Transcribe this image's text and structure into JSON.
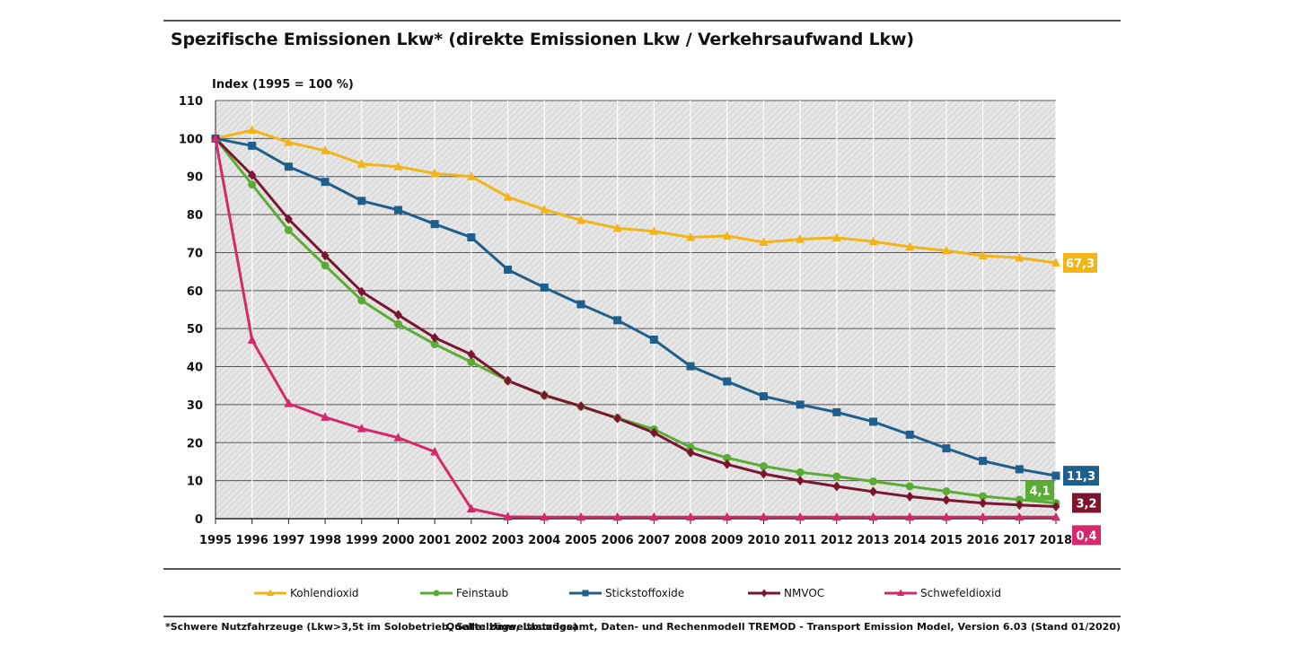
{
  "header": {
    "title": "Spezifische Emissionen Lkw* (direkte Emissionen Lkw / Verkehrsaufwand Lkw)"
  },
  "footer": {
    "note": "*Schwere Nutzfahrzeuge (Lkw>3,5t im Solobetrieb, Sattelzüge, Lastzüge)",
    "source": "Quelle: Umweltbundesamt, Daten- und Rechenmodell TREMOD - Transport Emission Model, Version 6.03 (Stand 01/2020)"
  },
  "chart_data": {
    "type": "line",
    "title": "Spezifische Emissionen Lkw* (direkte Emissionen Lkw / Verkehrsaufwand Lkw)",
    "ylabel": "Index (1995 = 100 %)",
    "xlabel": "",
    "ylim": [
      0,
      110
    ],
    "yticks": [
      0,
      10,
      20,
      30,
      40,
      50,
      60,
      70,
      80,
      90,
      100,
      110
    ],
    "categories": [
      "1995",
      "1996",
      "1997",
      "1998",
      "1999",
      "2000",
      "2001",
      "2002",
      "2003",
      "2004",
      "2005",
      "2006",
      "2007",
      "2008",
      "2009",
      "2010",
      "2011",
      "2012",
      "2013",
      "2014",
      "2015",
      "2016",
      "2017",
      "2018"
    ],
    "grid": true,
    "legend_position": "bottom",
    "series": [
      {
        "name": "Kohlendioxid",
        "color": "#f2b416",
        "marker": "triangle",
        "end_label": "67,3",
        "values": [
          100,
          102.2,
          99,
          96.8,
          93.3,
          92.6,
          90.8,
          90,
          84.6,
          81.3,
          78.5,
          76.4,
          75.6,
          74,
          74.4,
          72.7,
          73.5,
          73.9,
          72.9,
          71.5,
          70.5,
          69.2,
          68.6,
          67.3
        ]
      },
      {
        "name": "Feinstaub",
        "color": "#5aac35",
        "marker": "circle",
        "end_label": "4,1",
        "values": [
          100,
          87.9,
          75.9,
          66.6,
          57.4,
          51.2,
          45.9,
          41.2,
          36.3,
          32.4,
          29.5,
          26.5,
          23.5,
          18.8,
          16,
          13.8,
          12.2,
          11.1,
          9.8,
          8.5,
          7.2,
          5.9,
          5.0,
          4.1
        ]
      },
      {
        "name": "Stickstoffoxide",
        "color": "#1f5f8b",
        "marker": "square",
        "end_label": "11,3",
        "values": [
          100,
          98.1,
          92.6,
          88.6,
          83.6,
          81.2,
          77.5,
          74,
          65.5,
          60.8,
          56.4,
          52.2,
          47.1,
          40.1,
          36.1,
          32.2,
          30,
          28,
          25.5,
          22.1,
          18.5,
          15.2,
          13,
          11.3
        ]
      },
      {
        "name": "NMVOC",
        "color": "#7b1530",
        "marker": "diamond",
        "end_label": "3,2",
        "values": [
          100,
          90.4,
          78.8,
          69.2,
          59.7,
          53.6,
          47.6,
          43.2,
          36.3,
          32.5,
          29.6,
          26.4,
          22.6,
          17.4,
          14.3,
          11.8,
          10,
          8.5,
          7.1,
          5.8,
          4.9,
          4.1,
          3.6,
          3.2
        ]
      },
      {
        "name": "Schwefeldioxid",
        "color": "#d42a6b",
        "marker": "triangle",
        "end_label": "0,4",
        "values": [
          100,
          47,
          30.3,
          26.7,
          23.7,
          21.3,
          17.6,
          2.6,
          0.5,
          0.4,
          0.4,
          0.4,
          0.4,
          0.4,
          0.4,
          0.4,
          0.4,
          0.4,
          0.4,
          0.4,
          0.4,
          0.4,
          0.4,
          0.4
        ]
      }
    ]
  }
}
